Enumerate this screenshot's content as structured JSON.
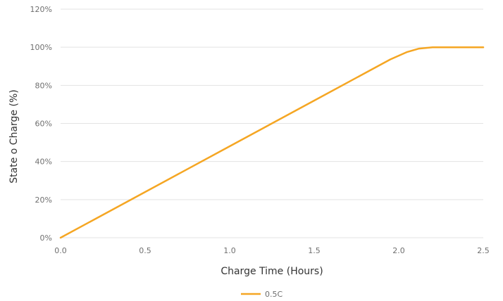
{
  "chart_data": {
    "type": "line",
    "title": "",
    "xlabel": "Charge Time (Hours)",
    "ylabel": "State o Charge (%)",
    "xlim": [
      0,
      2.5
    ],
    "ylim": [
      0,
      120
    ],
    "x_ticks": [
      0.0,
      0.5,
      1.0,
      1.5,
      2.0,
      2.5
    ],
    "x_tick_labels": [
      "0.0",
      "0.5",
      "1.0",
      "1.5",
      "2.0",
      "2.5"
    ],
    "y_ticks": [
      0,
      20,
      40,
      60,
      80,
      100,
      120
    ],
    "y_tick_labels": [
      "0%",
      "20%",
      "40%",
      "60%",
      "80%",
      "100%",
      "120%"
    ],
    "grid": "horizontal",
    "legend_position": "bottom-center",
    "series": [
      {
        "name": "0.5C",
        "color": "#f5a623",
        "x": [
          0.0,
          0.5,
          1.0,
          1.5,
          1.8,
          1.95,
          2.05,
          2.12,
          2.2,
          2.3,
          2.5
        ],
        "y": [
          0,
          24,
          48,
          72,
          86.4,
          93.6,
          97.5,
          99.3,
          100,
          100,
          100
        ]
      }
    ]
  }
}
